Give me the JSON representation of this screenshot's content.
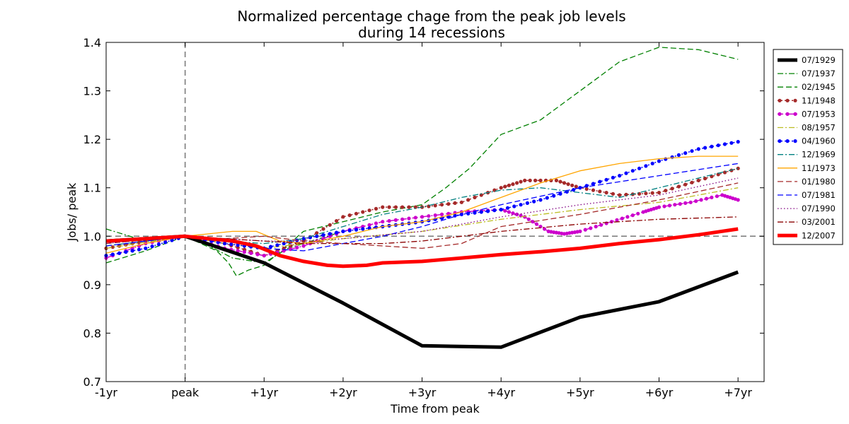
{
  "chart_data": {
    "type": "line",
    "title_line1": "Normalized percentage chage from the peak job levels",
    "title_line2": "during 14 recessions",
    "title": "Normalized percentage chage from the peak job levels during 14 recessions",
    "xlabel": "Time from peak",
    "ylabel": "Jobs/ peak",
    "xlim": [
      -1,
      7.33
    ],
    "ylim": [
      0.7,
      1.4
    ],
    "x_ticks": [
      -1,
      0,
      1,
      2,
      3,
      4,
      5,
      6,
      7
    ],
    "x_tick_labels": [
      "-1yr",
      "peak",
      "+1yr",
      "+2yr",
      "+3yr",
      "+4yr",
      "+5yr",
      "+6yr",
      "+7yr"
    ],
    "y_ticks": [
      0.7,
      0.8,
      0.9,
      1.0,
      1.1,
      1.2,
      1.3,
      1.4
    ],
    "y_tick_labels": [
      "0.7",
      "0.8",
      "0.9",
      "1.0",
      "1.1",
      "1.2",
      "1.3",
      "1.4"
    ],
    "reference_lines": {
      "horizontal_y": 1.0,
      "vertical_x": 0
    },
    "legend_position": "right",
    "series": [
      {
        "name": "07/1929",
        "color": "#000000",
        "style": "solid-thick",
        "x": [
          -1,
          0,
          1,
          2,
          3,
          4,
          5,
          6,
          7
        ],
        "y": [
          0.99,
          1.0,
          0.945,
          0.862,
          0.774,
          0.771,
          0.833,
          0.865,
          0.926
        ]
      },
      {
        "name": "07/1937",
        "color": "#008000",
        "style": "dashdot",
        "x": [
          -1,
          -0.5,
          0,
          0.3,
          0.6,
          0.8,
          1.0,
          1.3,
          1.6,
          2.0
        ],
        "y": [
          1.015,
          0.99,
          1.0,
          0.98,
          0.955,
          0.95,
          0.945,
          0.975,
          0.99,
          1.01
        ]
      },
      {
        "name": "02/1945",
        "color": "#008000",
        "style": "dashed",
        "x": [
          -1,
          -0.5,
          0,
          0.4,
          0.55,
          0.65,
          0.8,
          1.0,
          1.5,
          2.0,
          2.5,
          3.0,
          3.3,
          3.6,
          4.0,
          4.5,
          5.0,
          5.5,
          6.0,
          6.5,
          7.0
        ],
        "y": [
          0.945,
          0.97,
          1.0,
          0.97,
          0.945,
          0.918,
          0.93,
          0.94,
          1.01,
          1.03,
          1.05,
          1.065,
          1.1,
          1.14,
          1.21,
          1.24,
          1.3,
          1.36,
          1.39,
          1.385,
          1.365
        ]
      },
      {
        "name": "11/1948",
        "color": "#a52a2a",
        "style": "dotted-marker",
        "x": [
          -1,
          -0.5,
          0,
          0.5,
          1.0,
          1.5,
          2.0,
          2.5,
          3.0,
          3.5,
          4.0,
          4.3,
          4.7,
          5.0,
          5.5,
          6.0,
          6.5,
          7.0
        ],
        "y": [
          0.975,
          0.99,
          1.0,
          0.985,
          0.96,
          0.99,
          1.04,
          1.06,
          1.06,
          1.07,
          1.1,
          1.115,
          1.115,
          1.1,
          1.085,
          1.09,
          1.115,
          1.14
        ]
      },
      {
        "name": "07/1953",
        "color": "#cc00cc",
        "style": "dashdot-marker",
        "x": [
          -1,
          -0.5,
          0,
          0.5,
          1.0,
          1.5,
          2.0,
          2.5,
          3.0,
          3.5,
          4.0,
          4.3,
          4.6,
          4.8,
          5.0,
          5.4,
          5.8,
          6.0,
          6.4,
          6.8,
          7.0
        ],
        "y": [
          0.955,
          0.985,
          1.0,
          0.975,
          0.96,
          0.98,
          1.01,
          1.03,
          1.04,
          1.05,
          1.055,
          1.04,
          1.01,
          1.005,
          1.01,
          1.03,
          1.05,
          1.06,
          1.07,
          1.085,
          1.075
        ]
      },
      {
        "name": "08/1957",
        "color": "#bcbd22",
        "style": "dashdot",
        "x": [
          -1,
          0,
          0.5,
          1.0,
          1.5,
          2.0,
          3.0,
          4.0,
          5.0,
          6.0,
          7.0
        ],
        "y": [
          0.975,
          1.0,
          0.985,
          0.975,
          0.985,
          0.995,
          1.01,
          1.035,
          1.055,
          1.07,
          1.1
        ]
      },
      {
        "name": "04/1960",
        "color": "#0000ff",
        "style": "dotted-marker",
        "x": [
          -1,
          -0.5,
          0,
          0.5,
          1.0,
          1.5,
          2.0,
          2.5,
          3.0,
          3.5,
          4.0,
          4.5,
          5.0,
          5.5,
          6.0,
          6.5,
          7.0
        ],
        "y": [
          0.96,
          0.975,
          1.0,
          0.985,
          0.975,
          0.995,
          1.01,
          1.02,
          1.03,
          1.045,
          1.055,
          1.075,
          1.1,
          1.125,
          1.155,
          1.18,
          1.195
        ]
      },
      {
        "name": "12/1969",
        "color": "#008080",
        "style": "dashdot",
        "x": [
          -1,
          0,
          0.5,
          1.0,
          1.5,
          2.0,
          2.5,
          3.0,
          3.5,
          4.0,
          4.5,
          5.0,
          5.5,
          6.0,
          6.5,
          7.0
        ],
        "y": [
          0.98,
          1.0,
          0.99,
          0.985,
          0.995,
          1.02,
          1.045,
          1.06,
          1.08,
          1.095,
          1.1,
          1.09,
          1.08,
          1.1,
          1.12,
          1.14
        ]
      },
      {
        "name": "11/1973",
        "color": "#ffa500",
        "style": "solid",
        "x": [
          -1,
          -0.5,
          0,
          0.3,
          0.6,
          0.9,
          1.2,
          1.5,
          2.0,
          2.5,
          3.0,
          3.5,
          4.0,
          4.5,
          5.0,
          5.5,
          6.0,
          6.5,
          7.0
        ],
        "y": [
          0.965,
          0.985,
          1.0,
          1.005,
          1.01,
          1.01,
          0.99,
          0.985,
          1.0,
          1.02,
          1.03,
          1.05,
          1.08,
          1.11,
          1.135,
          1.15,
          1.16,
          1.165,
          1.165
        ]
      },
      {
        "name": "01/1980",
        "color": "#a52a2a",
        "style": "dashed",
        "x": [
          -1,
          0,
          0.5,
          1.0,
          1.5,
          2.0,
          2.5,
          3.0,
          3.5,
          4.0,
          5.0,
          6.0,
          7.0
        ],
        "y": [
          0.985,
          1.0,
          0.995,
          1.0,
          0.99,
          0.985,
          0.98,
          0.975,
          0.985,
          1.02,
          1.045,
          1.075,
          1.11
        ]
      },
      {
        "name": "07/1981",
        "color": "#0000ff",
        "style": "dashed",
        "x": [
          -1,
          0,
          0.5,
          1.0,
          1.5,
          2.0,
          2.5,
          3.0,
          3.5,
          4.0,
          5.0,
          6.0,
          7.0
        ],
        "y": [
          0.98,
          1.0,
          0.99,
          0.975,
          0.97,
          0.985,
          1.0,
          1.02,
          1.045,
          1.065,
          1.1,
          1.125,
          1.15
        ]
      },
      {
        "name": "07/1990",
        "color": "#800080",
        "style": "dotted",
        "x": [
          -1,
          0,
          0.5,
          1.0,
          1.5,
          2.0,
          3.0,
          4.0,
          5.0,
          6.0,
          7.0
        ],
        "y": [
          0.985,
          1.0,
          0.995,
          0.99,
          0.99,
          0.995,
          1.01,
          1.04,
          1.065,
          1.085,
          1.12
        ]
      },
      {
        "name": "03/2001",
        "color": "#8b0000",
        "style": "dashdot",
        "x": [
          -1,
          0,
          0.5,
          1.0,
          1.5,
          2.0,
          2.5,
          3.0,
          3.5,
          4.0,
          5.0,
          6.0,
          7.0
        ],
        "y": [
          0.99,
          1.0,
          0.995,
          0.99,
          0.985,
          0.985,
          0.985,
          0.99,
          1.0,
          1.01,
          1.025,
          1.035,
          1.04
        ]
      },
      {
        "name": "12/2007",
        "color": "#ff0000",
        "style": "solid-thick",
        "x": [
          -1,
          -0.5,
          0,
          0.3,
          0.6,
          0.9,
          1.2,
          1.5,
          1.8,
          2.0,
          2.3,
          2.5,
          3.0,
          3.5,
          4.0,
          4.5,
          5.0,
          5.5,
          6.0,
          6.5,
          7.0
        ],
        "y": [
          0.99,
          0.995,
          1.0,
          0.995,
          0.99,
          0.98,
          0.96,
          0.948,
          0.94,
          0.938,
          0.94,
          0.945,
          0.948,
          0.955,
          0.962,
          0.968,
          0.975,
          0.985,
          0.993,
          1.003,
          1.015
        ]
      }
    ]
  }
}
